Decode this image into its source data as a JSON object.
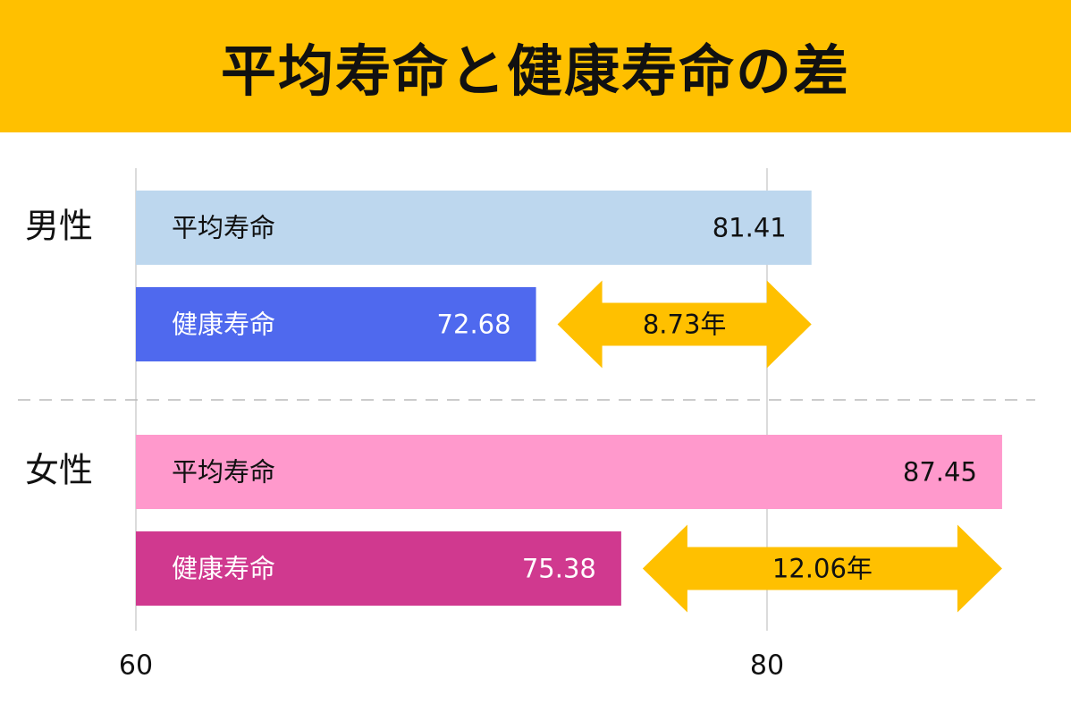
{
  "chart_data": {
    "type": "bar",
    "orientation": "horizontal",
    "title": "平均寿命と健康寿命の差",
    "categories": [
      "男性",
      "女性"
    ],
    "series": [
      {
        "name": "平均寿命",
        "colors": [
          "#BDD7EE",
          "#FF99CC"
        ],
        "values": [
          81.41,
          87.45
        ]
      },
      {
        "name": "健康寿命",
        "colors": [
          "#4F69EE",
          "#D0398F"
        ],
        "values": [
          72.68,
          75.38
        ]
      }
    ],
    "differences": {
      "color": "#FFC000",
      "values": [
        8.73,
        12.06
      ],
      "value_labels": [
        "8.73年",
        "12.06年"
      ]
    },
    "xlim": [
      60,
      88.5
    ],
    "xticks": [
      60,
      80
    ],
    "grid": true
  }
}
